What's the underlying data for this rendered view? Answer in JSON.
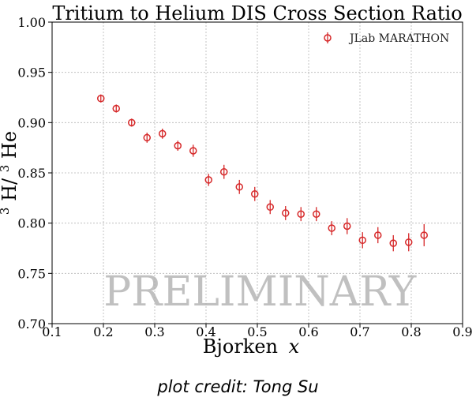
{
  "chart_data": {
    "type": "scatter",
    "title": "Tritium to Helium DIS Cross Section Ratio",
    "xlabel_text": "Bjorken",
    "xlabel_var": "x",
    "ylabel": {
      "sup1": "3",
      "base1": "H/",
      "sup2": "3",
      "base2": "He"
    },
    "xlim": [
      0.1,
      0.9
    ],
    "ylim": [
      0.7,
      1.0
    ],
    "xticks": [
      "0.1",
      "0.2",
      "0.3",
      "0.4",
      "0.5",
      "0.6",
      "0.7",
      "0.8",
      "0.9"
    ],
    "yticks": [
      "0.70",
      "0.75",
      "0.80",
      "0.85",
      "0.90",
      "0.95",
      "1.00"
    ],
    "grid": true,
    "legend_position": "top-right",
    "color": "#d62728",
    "series": [
      {
        "name": "JLab MARATHON",
        "points": [
          {
            "x": 0.195,
            "y": 0.924,
            "err": 0.004
          },
          {
            "x": 0.225,
            "y": 0.914,
            "err": 0.004
          },
          {
            "x": 0.255,
            "y": 0.9,
            "err": 0.004
          },
          {
            "x": 0.285,
            "y": 0.885,
            "err": 0.005
          },
          {
            "x": 0.315,
            "y": 0.889,
            "err": 0.005
          },
          {
            "x": 0.345,
            "y": 0.877,
            "err": 0.005
          },
          {
            "x": 0.375,
            "y": 0.872,
            "err": 0.006
          },
          {
            "x": 0.405,
            "y": 0.843,
            "err": 0.006
          },
          {
            "x": 0.435,
            "y": 0.851,
            "err": 0.007
          },
          {
            "x": 0.465,
            "y": 0.836,
            "err": 0.007
          },
          {
            "x": 0.495,
            "y": 0.829,
            "err": 0.007
          },
          {
            "x": 0.525,
            "y": 0.816,
            "err": 0.007
          },
          {
            "x": 0.555,
            "y": 0.81,
            "err": 0.007
          },
          {
            "x": 0.585,
            "y": 0.809,
            "err": 0.007
          },
          {
            "x": 0.615,
            "y": 0.809,
            "err": 0.007
          },
          {
            "x": 0.645,
            "y": 0.795,
            "err": 0.007
          },
          {
            "x": 0.675,
            "y": 0.797,
            "err": 0.008
          },
          {
            "x": 0.705,
            "y": 0.783,
            "err": 0.008
          },
          {
            "x": 0.735,
            "y": 0.788,
            "err": 0.008
          },
          {
            "x": 0.765,
            "y": 0.78,
            "err": 0.008
          },
          {
            "x": 0.795,
            "y": 0.781,
            "err": 0.009
          },
          {
            "x": 0.825,
            "y": 0.788,
            "err": 0.011
          }
        ]
      }
    ],
    "watermark": "PRELIMINARY"
  },
  "credit": "plot credit:  Tong Su"
}
